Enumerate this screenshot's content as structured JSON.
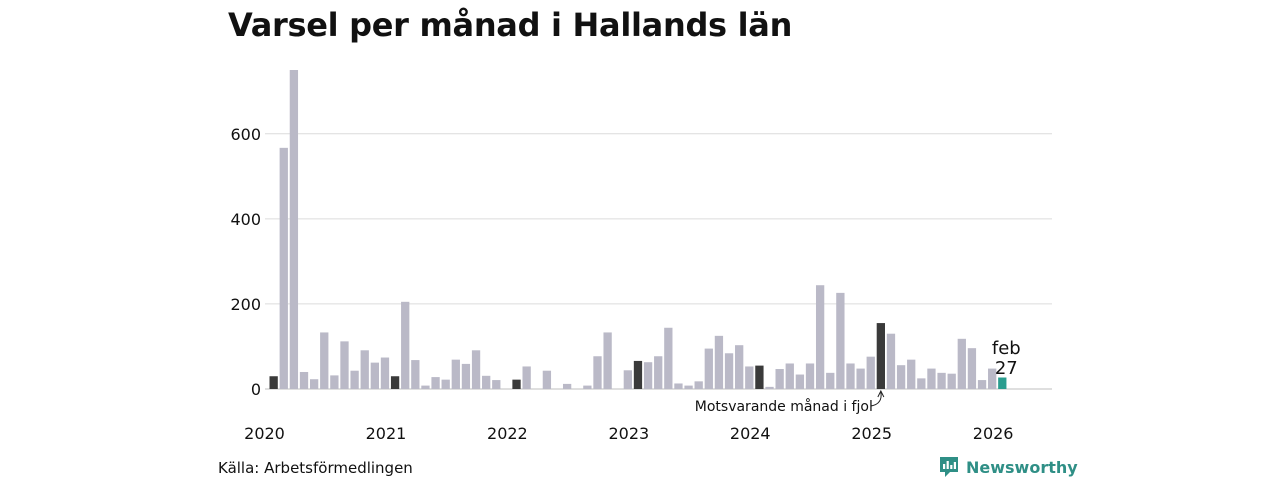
{
  "chart_data": {
    "type": "bar",
    "title": "Varsel per månad i Hallands län",
    "source": "Källa: Arbetsförmedlingen",
    "brand": "Newsworthy",
    "ylim": [
      0,
      750
    ],
    "y_ticks": [
      "0",
      "200",
      "400",
      "600"
    ],
    "y_tick_values": [
      0,
      200,
      400,
      600
    ],
    "year_labels": [
      "2020",
      "2021",
      "2022",
      "2023",
      "2024",
      "2025",
      "2026"
    ],
    "values": [
      30,
      567,
      750,
      40,
      23,
      133,
      32,
      112,
      43,
      91,
      62,
      74,
      30,
      205,
      68,
      8,
      28,
      22,
      69,
      59,
      91,
      31,
      21,
      0,
      22,
      53,
      0,
      43,
      0,
      12,
      0,
      8,
      77,
      133,
      0,
      44,
      66,
      63,
      77,
      144,
      13,
      8,
      18,
      95,
      125,
      84,
      103,
      53,
      55,
      5,
      47,
      60,
      34,
      60,
      244,
      38,
      226,
      60,
      48,
      76,
      155,
      130,
      56,
      69,
      25,
      48,
      38,
      36,
      118,
      96,
      21,
      48,
      27
    ],
    "highlight_same_month_indices": [
      0,
      12,
      24,
      36,
      48,
      60
    ],
    "current_index": 72,
    "current_label_month": "feb",
    "current_label_value": "27",
    "annotation": "Motsvarande månad i fjol",
    "colors": {
      "bar": "#bab9c7",
      "highlight": "#3a3a3a",
      "current": "#2a9d8f",
      "grid": "#dcdcdc",
      "brand": "#2f8f86"
    }
  }
}
